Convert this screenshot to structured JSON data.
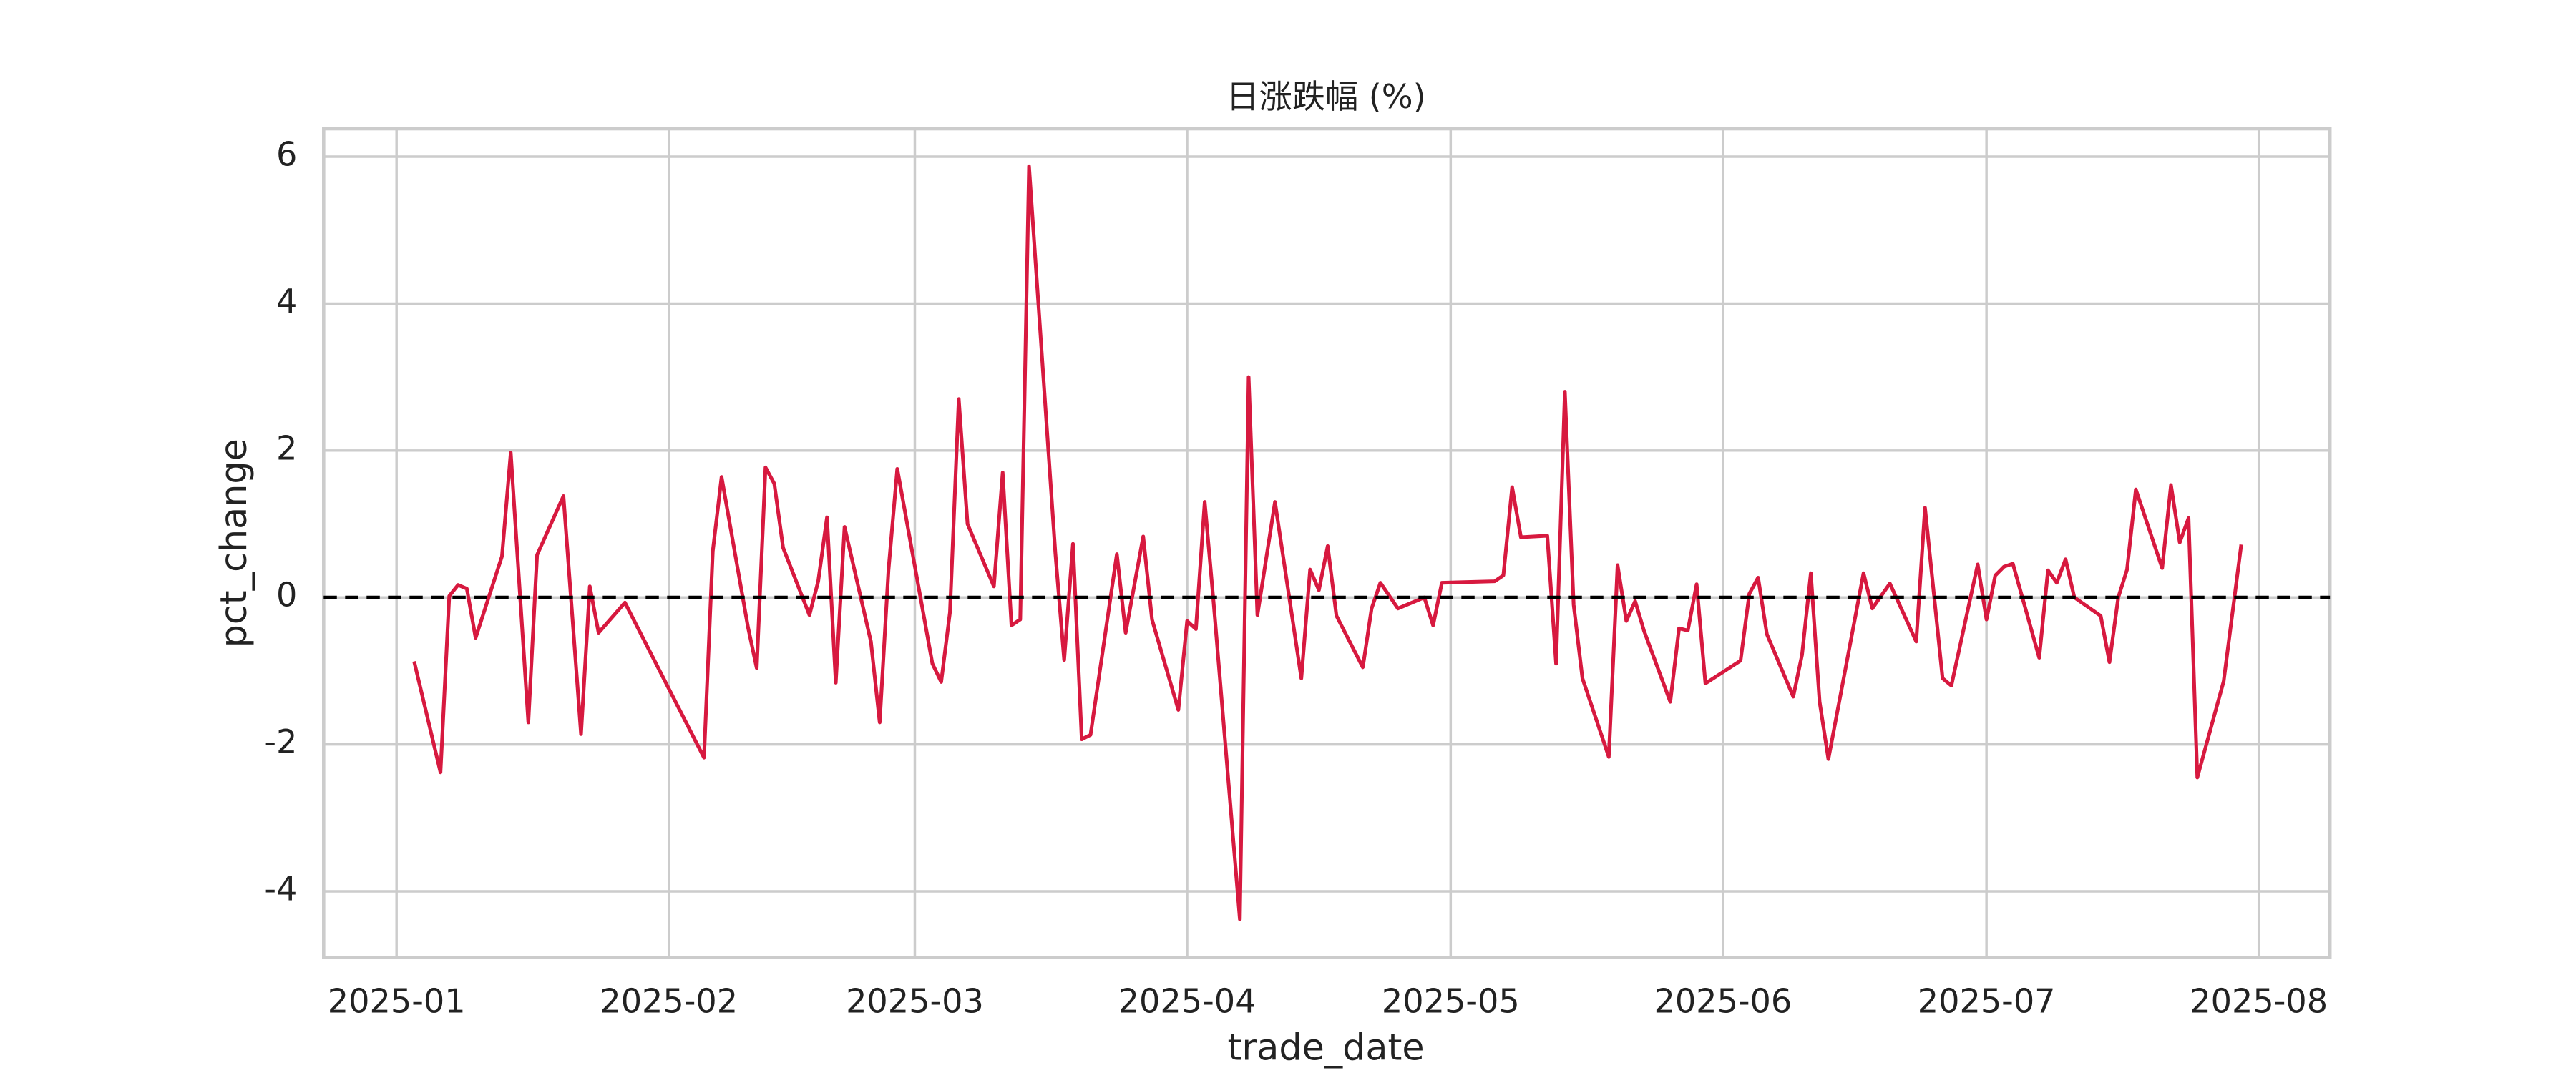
{
  "chart_data": {
    "type": "line",
    "title": "日涨跌幅 (%)",
    "x_label": "trade_date",
    "y_label": "pct_change",
    "x": [
      2,
      5,
      6,
      7,
      8,
      9,
      12,
      13,
      15,
      16,
      19,
      21,
      22,
      23,
      26,
      35,
      36,
      37,
      40,
      41,
      42,
      43,
      44,
      47,
      48,
      49,
      50,
      51,
      54,
      55,
      56,
      57,
      61,
      62,
      63,
      64,
      65,
      68,
      69,
      70,
      71,
      72,
      75,
      76,
      77,
      78,
      79,
      82,
      83,
      85,
      86,
      89,
      90,
      91,
      92,
      93,
      96,
      97,
      98,
      100,
      103,
      104,
      105,
      106,
      107,
      110,
      111,
      112,
      114,
      117,
      118,
      119,
      125,
      126,
      127,
      128,
      131,
      132,
      133,
      134,
      135,
      138,
      139,
      140,
      141,
      142,
      145,
      146,
      147,
      148,
      149,
      153,
      154,
      155,
      156,
      159,
      160,
      161,
      162,
      163,
      167,
      168,
      170,
      173,
      174,
      176,
      177,
      180,
      181,
      182,
      183,
      184,
      187,
      188,
      189,
      190,
      191,
      194,
      195,
      196,
      197,
      198,
      201,
      202,
      203,
      204,
      205,
      208,
      210
    ],
    "series": [
      {
        "name": "pct_change",
        "color": "#d7193f",
        "values": [
          -0.87,
          -2.38,
          0.02,
          0.17,
          0.12,
          -0.55,
          0.56,
          1.97,
          -1.7,
          0.58,
          1.38,
          -1.86,
          0.15,
          -0.48,
          -0.07,
          -2.18,
          0.63,
          1.64,
          -0.4,
          -0.96,
          1.77,
          1.55,
          0.68,
          -0.24,
          0.22,
          1.09,
          -1.16,
          0.96,
          -0.6,
          -1.7,
          0.37,
          1.75,
          -0.9,
          -1.15,
          -0.2,
          2.7,
          1.0,
          0.15,
          1.7,
          -0.38,
          -0.3,
          5.87,
          0.6,
          -0.85,
          0.73,
          -1.93,
          -1.87,
          0.59,
          -0.48,
          0.83,
          -0.3,
          -1.53,
          -0.32,
          -0.43,
          1.3,
          -0.05,
          -4.38,
          3.0,
          -0.24,
          1.3,
          -1.1,
          0.38,
          0.1,
          0.7,
          -0.25,
          -0.95,
          -0.15,
          0.2,
          -0.15,
          0.0,
          -0.38,
          0.2,
          0.22,
          0.3,
          1.5,
          0.82,
          0.84,
          -0.9,
          2.8,
          -0.1,
          -1.1,
          -2.17,
          0.44,
          -0.32,
          -0.05,
          -0.45,
          -1.42,
          -0.42,
          -0.45,
          0.18,
          -1.17,
          -0.86,
          0.05,
          0.27,
          -0.5,
          -1.35,
          -0.78,
          0.33,
          -1.42,
          -2.2,
          0.33,
          -0.15,
          0.19,
          -0.6,
          1.22,
          -1.1,
          -1.2,
          0.45,
          -0.3,
          0.3,
          0.42,
          0.46,
          -0.82,
          0.37,
          0.2,
          0.52,
          0.0,
          -0.25,
          -0.88,
          0.0,
          0.38,
          1.47,
          0.4,
          1.53,
          0.75,
          1.08,
          -2.45,
          -1.14,
          0.72
        ]
      }
    ],
    "reference_line": {
      "y": 0,
      "color": "#000000",
      "style": "dashed"
    },
    "xlim": [
      -8.3,
      220.1
    ],
    "xticks": [
      {
        "value": 0,
        "label": "2025-01"
      },
      {
        "value": 31,
        "label": "2025-02"
      },
      {
        "value": 59,
        "label": "2025-03"
      },
      {
        "value": 90,
        "label": "2025-04"
      },
      {
        "value": 120,
        "label": "2025-05"
      },
      {
        "value": 151,
        "label": "2025-06"
      },
      {
        "value": 181,
        "label": "2025-07"
      },
      {
        "value": 212,
        "label": "2025-08"
      }
    ],
    "ylim": [
      -4.9,
      6.38
    ],
    "yticks": [
      -4,
      -2,
      0,
      2,
      4,
      6
    ],
    "grid": true
  }
}
